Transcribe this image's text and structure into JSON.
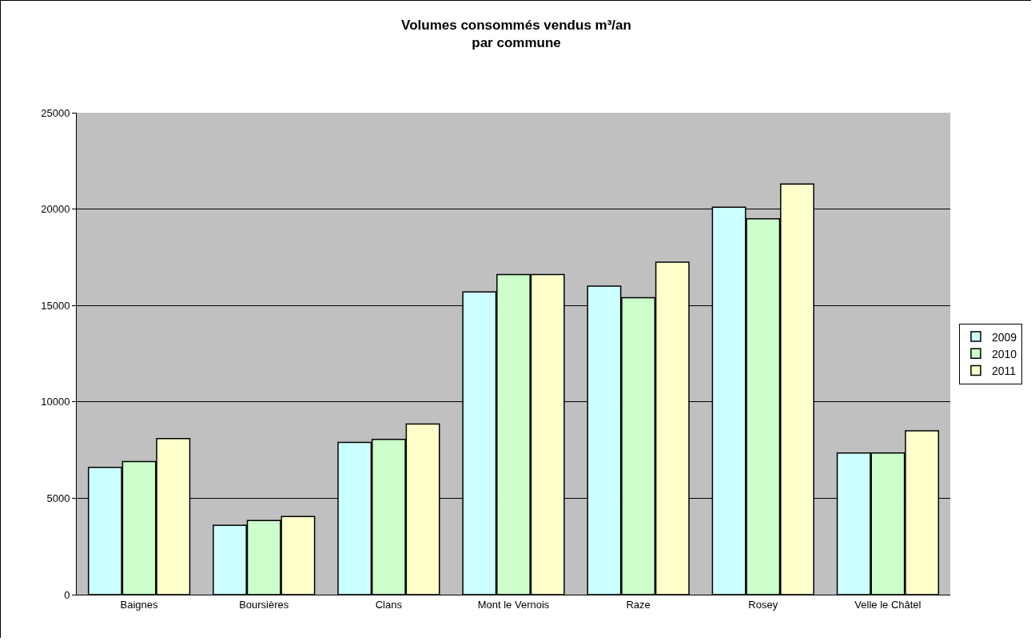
{
  "chart_data": {
    "type": "bar",
    "title": "Volumes consommés vendus m³/an\npar commune",
    "categories": [
      "Baignes",
      "Boursières",
      "Clans",
      "Mont le Vernois",
      "Raze",
      "Rosey",
      "Velle le Châtel"
    ],
    "series": [
      {
        "name": "2009",
        "color": "#ccffff",
        "values": [
          6600,
          3600,
          7900,
          15700,
          16000,
          20100,
          7350
        ]
      },
      {
        "name": "2010",
        "color": "#ccffcc",
        "values": [
          6900,
          3850,
          8050,
          16600,
          15400,
          19500,
          7350
        ]
      },
      {
        "name": "2011",
        "color": "#ffffcc",
        "values": [
          8100,
          4050,
          8850,
          16600,
          17250,
          21300,
          8500
        ]
      }
    ],
    "ylim": [
      0,
      25000
    ],
    "yticks": [
      0,
      5000,
      10000,
      15000,
      20000,
      25000
    ],
    "grid": "y",
    "legend": "right"
  }
}
